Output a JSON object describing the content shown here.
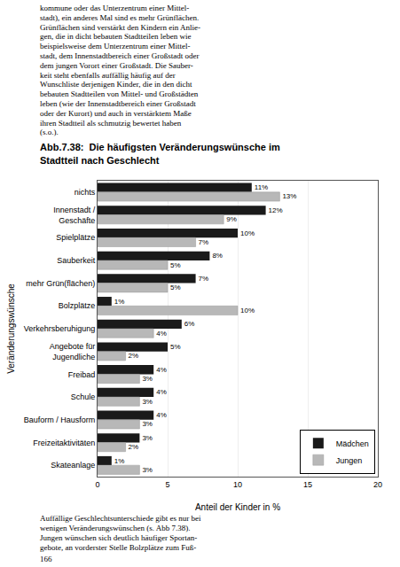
{
  "chart_data": {
    "type": "bar",
    "orientation": "horizontal",
    "title": "Abb.7.38:  Die häufigsten Veränderungswünsche im\nStadtteil nach Geschlecht",
    "categories": [
      "nichts",
      "Innenstadt /\nGeschäfte",
      "Spielplätze",
      "Sauberkeit",
      "mehr Grün(flächen)",
      "Bolzplätze",
      "Verkehrsberuhigung",
      "Angebote für\nJugendliche",
      "Freibad",
      "Schule",
      "Bauform / Hausform",
      "Freizeitaktivitäten",
      "Skateanlage"
    ],
    "series": [
      {
        "name": "Mädchen",
        "color": "#1a1a1a",
        "values": [
          11,
          12,
          10,
          8,
          7,
          1,
          6,
          5,
          4,
          4,
          4,
          3,
          1
        ],
        "value_labels": [
          "11%",
          "12%",
          "10%",
          "8%",
          "7%",
          "1%",
          "6%",
          "5%",
          "4%",
          "4%",
          "4%",
          "3%",
          "1%"
        ]
      },
      {
        "name": "Jungen",
        "color": "#b8b8b8",
        "values": [
          13,
          9,
          7,
          5,
          5,
          10,
          4,
          2,
          3,
          3,
          3,
          2,
          3
        ],
        "value_labels": [
          "13%",
          "9%",
          "7%",
          "5%",
          "5%",
          "10%",
          "4%",
          "2%",
          "3%",
          "3%",
          "3%",
          "2%",
          "3%"
        ]
      }
    ],
    "xlabel": "Anteil der Kinder in %",
    "ylabel": "Veränderungswünsche",
    "xlim": [
      0,
      20
    ],
    "xticks": [
      0,
      5,
      10,
      15,
      20
    ],
    "grid": true,
    "legend": "lower right",
    "data_labels": true,
    "annotations": [
      "kommune oder das Unterzentrum einer Mittel-\nstadt), ein anderes Mal sind es mehr Grünflächen.\nGrünflächen sind verstärkt den Kindern ein Anlie-\ngen, die in dicht bebauten Stadtteilen leben wie\nbeispielsweise dem Unterzentrum einer Mittel-\nstadt, dem Innenstadtbereich einer Großstadt oder\ndem jungen Vorort einer Großstadt. Die Sauber-\nkeit steht ebenfalls auffällig häufig auf der\nWunschliste derjenigen Kinder, die in den dicht\nbebauten Stadtteilen von Mittel- und Großstädten\nleben (wie der Innenstadtbereich einer Großstadt\noder der Kurort) und auch in verstärktem Maße\nihren Stadtteil als schmutzig bewertet haben\n(s.o.).",
      "Auffällige Geschlechtsunterschiede gibt es nur bei\nwenigen Veränderungswünschen (s. Abb 7.38).\nJungen wünschen sich deutlich häufiger Sportan-\ngebote, an vorderster Stelle Bolzplätze zum Fuß-",
      "166"
    ]
  }
}
